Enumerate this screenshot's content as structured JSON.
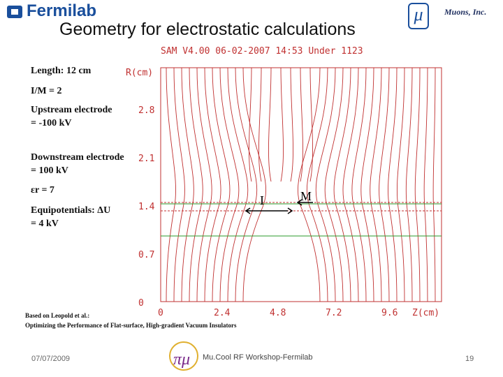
{
  "header": {
    "logo": "Fermilab",
    "title": "Geometry for electrostatic calculations",
    "mu": "μ",
    "company": "Muons, Inc."
  },
  "notes": [
    "Length: 12 cm",
    "I/M = 2",
    "Upstream electrode = -100 kV",
    "Downstream electrode = 100 kV",
    "εr = 7",
    "Equipotentials: ΔU = 4 kV"
  ],
  "plot": {
    "banner": "SAM V4.00 06-02-2007 14:53 Under 1123",
    "y_label": "R(cm)",
    "x_label": "Z(cm)",
    "yticks": [
      "2.8",
      "2.1",
      "1.4",
      "0.7",
      "0"
    ],
    "xticks": [
      "0",
      "2.4",
      "4.8",
      "7.2",
      "9.6"
    ],
    "label_i": "I",
    "label_m": "M"
  },
  "reference": {
    "line1": "Based on Leopold et al.:",
    "line2": "Optimizing the Performance of Flat-surface, High-gradient Vacuum Insulators"
  },
  "footer": {
    "date": "07/07/2009",
    "event": "Mu.Cool RF Workshop-Fermilab",
    "page": "19"
  }
}
